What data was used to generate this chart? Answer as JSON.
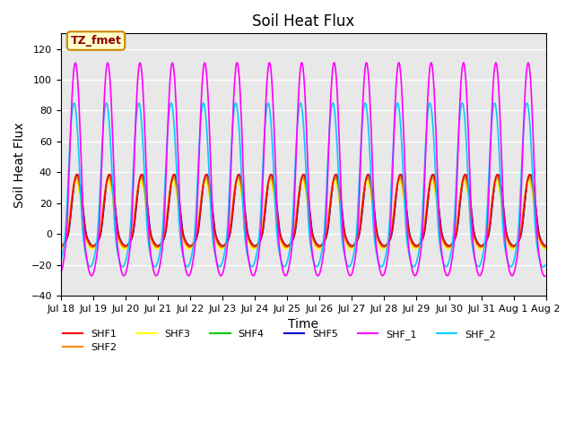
{
  "title": "Soil Heat Flux",
  "xlabel": "Time",
  "ylabel": "Soil Heat Flux",
  "ylim": [
    -40,
    130
  ],
  "yticks": [
    -40,
    -20,
    0,
    20,
    40,
    60,
    80,
    100,
    120
  ],
  "annotation_text": "TZ_fmet",
  "annotation_bg": "#FFFFCC",
  "annotation_border": "#CC8800",
  "series_colors": {
    "SHF1": "#FF0000",
    "SHF2": "#FF8800",
    "SHF3": "#FFFF00",
    "SHF4": "#00CC00",
    "SHF5": "#0000CC",
    "SHF_1": "#FF00FF",
    "SHF_2": "#00CCFF"
  },
  "xtick_labels": [
    "Jul 18",
    "Jul 19",
    "Jul 20",
    "Jul 21",
    "Jul 22",
    "Jul 23",
    "Jul 24",
    "Jul 25",
    "Jul 26",
    "Jul 27",
    "Jul 28",
    "Jul 29",
    "Jul 30",
    "Jul 31",
    "Aug 1",
    "Aug 2"
  ],
  "bg_color": "#E8E8E8",
  "grid_color": "#FFFFFF",
  "n_days": 15,
  "pts_per_day": 48
}
